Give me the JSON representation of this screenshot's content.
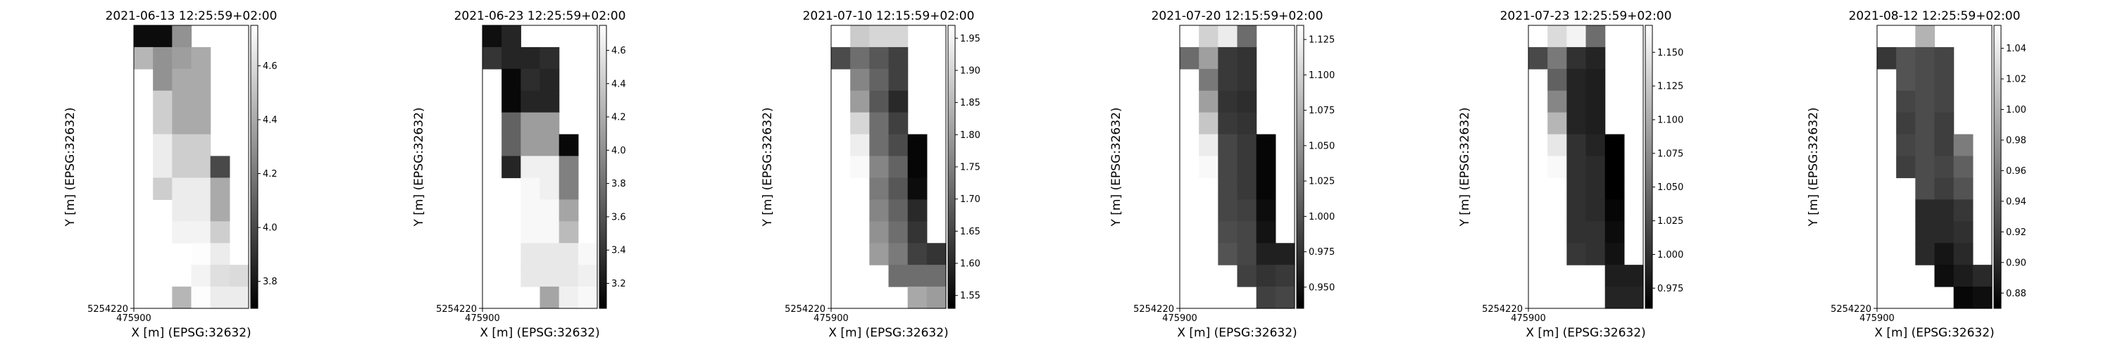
{
  "figure": {
    "xlabel": "X [m] (EPSG:32632)",
    "ylabel": "Y [m] (EPSG:32632)",
    "x_origin_tick": "475900",
    "y_origin_tick": "5254220"
  },
  "chart_data": [
    {
      "type": "heatmap",
      "title": "2021-06-13 12:25:59+02:00",
      "xlabel": "X [m] (EPSG:32632)",
      "ylabel": "Y [m] (EPSG:32632)",
      "colormap": "greys_reversed",
      "vrange": [
        3.7,
        4.75
      ],
      "colorbar_ticks": [
        "3.8",
        "4.0",
        "4.2",
        "4.4",
        "4.6"
      ],
      "ncols": 6,
      "nrows": 13,
      "grid": [
        [
          3.75,
          3.75,
          4.3,
          null,
          null,
          null
        ],
        [
          4.45,
          4.3,
          4.35,
          4.4,
          null,
          null
        ],
        [
          null,
          4.3,
          4.4,
          4.4,
          null,
          null
        ],
        [
          null,
          4.55,
          4.4,
          4.4,
          null,
          null
        ],
        [
          null,
          4.55,
          4.4,
          4.4,
          null,
          null
        ],
        [
          null,
          4.67,
          4.55,
          4.55,
          null,
          null
        ],
        [
          null,
          4.67,
          4.55,
          4.55,
          4.0,
          null
        ],
        [
          null,
          4.55,
          4.67,
          4.67,
          4.4,
          null
        ],
        [
          null,
          null,
          4.67,
          4.67,
          4.4,
          null
        ],
        [
          null,
          null,
          4.7,
          4.7,
          4.55,
          null
        ],
        [
          null,
          null,
          null,
          4.74,
          4.67,
          null
        ],
        [
          null,
          null,
          null,
          4.7,
          4.62,
          4.6
        ],
        [
          null,
          null,
          4.45,
          4.74,
          4.67,
          4.67
        ]
      ]
    },
    {
      "type": "heatmap",
      "title": "2021-06-23 12:25:59+02:00",
      "xlabel": "X [m] (EPSG:32632)",
      "ylabel": "Y [m] (EPSG:32632)",
      "colormap": "greys_reversed",
      "vrange": [
        3.05,
        4.75
      ],
      "colorbar_ticks": [
        "3.2",
        "3.4",
        "3.6",
        "3.8",
        "4.0",
        "4.2",
        "4.4",
        "4.6"
      ],
      "ncols": 6,
      "nrows": 13,
      "grid": [
        [
          3.15,
          3.3,
          null,
          null,
          null,
          null
        ],
        [
          3.4,
          3.3,
          3.3,
          3.35,
          null,
          null
        ],
        [
          null,
          3.1,
          3.35,
          3.3,
          null,
          null
        ],
        [
          null,
          3.1,
          3.3,
          3.3,
          null,
          null
        ],
        [
          null,
          3.7,
          4.1,
          4.1,
          null,
          null
        ],
        [
          null,
          3.7,
          4.1,
          4.1,
          3.1,
          null
        ],
        [
          null,
          3.3,
          4.65,
          4.65,
          3.9,
          null
        ],
        [
          null,
          null,
          4.7,
          4.65,
          3.9,
          null
        ],
        [
          null,
          null,
          4.7,
          4.7,
          4.15,
          null
        ],
        [
          null,
          null,
          4.7,
          4.7,
          4.3,
          null
        ],
        [
          null,
          null,
          4.6,
          4.6,
          4.6,
          4.7
        ],
        [
          null,
          null,
          4.6,
          4.6,
          4.6,
          4.65
        ],
        [
          null,
          null,
          null,
          4.15,
          4.65,
          4.7
        ]
      ]
    },
    {
      "type": "heatmap",
      "title": "2021-07-10 12:15:59+02:00",
      "xlabel": "X [m] (EPSG:32632)",
      "ylabel": "Y [m] (EPSG:32632)",
      "colormap": "greys_reversed",
      "vrange": [
        1.53,
        1.97
      ],
      "colorbar_ticks": [
        "1.55",
        "1.60",
        "1.65",
        "1.70",
        "1.75",
        "1.80",
        "1.85",
        "1.90",
        "1.95"
      ],
      "ncols": 6,
      "nrows": 13,
      "grid": [
        [
          null,
          1.88,
          1.9,
          1.9,
          null,
          null
        ],
        [
          1.66,
          1.72,
          1.68,
          1.64,
          null,
          null
        ],
        [
          null,
          1.76,
          1.7,
          1.64,
          null,
          null
        ],
        [
          null,
          1.8,
          1.68,
          1.6,
          null,
          null
        ],
        [
          null,
          1.9,
          1.72,
          1.64,
          null,
          null
        ],
        [
          null,
          1.94,
          1.72,
          1.66,
          1.54,
          null
        ],
        [
          null,
          1.96,
          1.76,
          1.7,
          1.54,
          null
        ],
        [
          null,
          null,
          1.74,
          1.68,
          1.55,
          null
        ],
        [
          null,
          null,
          1.76,
          1.7,
          1.6,
          null
        ],
        [
          null,
          null,
          1.78,
          1.72,
          1.62,
          null
        ],
        [
          null,
          null,
          1.8,
          1.74,
          1.64,
          1.62
        ],
        [
          null,
          null,
          null,
          1.72,
          1.72,
          1.72
        ],
        [
          null,
          null,
          null,
          null,
          1.82,
          1.8
        ]
      ]
    },
    {
      "type": "heatmap",
      "title": "2021-07-20 12:15:59+02:00",
      "xlabel": "X [m] (EPSG:32632)",
      "ylabel": "Y [m] (EPSG:32632)",
      "colormap": "greys_reversed",
      "vrange": [
        0.935,
        1.135
      ],
      "colorbar_ticks": [
        "0.950",
        "0.975",
        "1.000",
        "1.025",
        "1.050",
        "1.075",
        "1.100",
        "1.125"
      ],
      "ncols": 6,
      "nrows": 13,
      "grid": [
        [
          null,
          1.1,
          1.12,
          1.02,
          null,
          null
        ],
        [
          1.02,
          1.06,
          0.98,
          0.975,
          null,
          null
        ],
        [
          null,
          1.03,
          0.98,
          0.975,
          null,
          null
        ],
        [
          null,
          1.06,
          0.975,
          0.97,
          null,
          null
        ],
        [
          null,
          1.09,
          0.98,
          0.975,
          null,
          null
        ],
        [
          null,
          1.12,
          0.99,
          0.98,
          0.94,
          null
        ],
        [
          null,
          1.13,
          0.99,
          0.98,
          0.94,
          null
        ],
        [
          null,
          null,
          0.99,
          0.98,
          0.94,
          null
        ],
        [
          null,
          null,
          0.99,
          0.985,
          0.945,
          null
        ],
        [
          null,
          null,
          0.995,
          0.99,
          0.95,
          null
        ],
        [
          null,
          null,
          1.0,
          0.99,
          0.96,
          0.96
        ],
        [
          null,
          null,
          null,
          0.985,
          0.975,
          0.98
        ],
        [
          null,
          null,
          null,
          null,
          0.985,
          0.99
        ]
      ]
    },
    {
      "type": "heatmap",
      "title": "2021-07-23 12:25:59+02:00",
      "xlabel": "X [m] (EPSG:32632)",
      "ylabel": "Y [m] (EPSG:32632)",
      "colormap": "greys_reversed",
      "vrange": [
        0.96,
        1.17
      ],
      "colorbar_ticks": [
        "0.975",
        "1.000",
        "1.025",
        "1.050",
        "1.075",
        "1.100",
        "1.125",
        "1.150"
      ],
      "ncols": 6,
      "nrows": 13,
      "grid": [
        [
          null,
          1.14,
          1.16,
          1.05,
          null,
          null
        ],
        [
          1.02,
          1.06,
          1.0,
          0.99,
          null,
          null
        ],
        [
          null,
          1.04,
          0.99,
          0.985,
          null,
          null
        ],
        [
          null,
          1.07,
          0.99,
          0.985,
          null,
          null
        ],
        [
          null,
          1.11,
          0.99,
          0.985,
          null,
          null
        ],
        [
          null,
          1.15,
          1.0,
          0.99,
          0.96,
          null
        ],
        [
          null,
          1.165,
          1.0,
          0.995,
          0.96,
          null
        ],
        [
          null,
          null,
          1.0,
          0.995,
          0.96,
          null
        ],
        [
          null,
          null,
          1.0,
          0.995,
          0.965,
          null
        ],
        [
          null,
          null,
          1.0,
          1.0,
          0.97,
          null
        ],
        [
          null,
          null,
          1.005,
          1.0,
          0.975,
          null
        ],
        [
          null,
          null,
          null,
          null,
          0.985,
          0.985
        ],
        [
          null,
          null,
          null,
          null,
          0.99,
          0.99
        ]
      ]
    },
    {
      "type": "heatmap",
      "title": "2021-08-12 12:25:59+02:00",
      "xlabel": "X [m] (EPSG:32632)",
      "ylabel": "Y [m] (EPSG:32632)",
      "colormap": "greys_reversed",
      "vrange": [
        0.87,
        1.055
      ],
      "colorbar_ticks": [
        "0.88",
        "0.90",
        "0.92",
        "0.94",
        "0.96",
        "0.98",
        "1.00",
        "1.02",
        "1.04"
      ],
      "ncols": 6,
      "nrows": 13,
      "grid": [
        [
          null,
          null,
          1.0,
          null,
          null,
          null
        ],
        [
          0.91,
          0.93,
          0.925,
          0.92,
          null,
          null
        ],
        [
          null,
          0.93,
          0.925,
          0.92,
          null,
          null
        ],
        [
          null,
          0.92,
          0.925,
          0.92,
          null,
          null
        ],
        [
          null,
          0.915,
          0.925,
          0.915,
          null,
          null
        ],
        [
          null,
          0.92,
          0.925,
          0.915,
          0.96,
          null
        ],
        [
          null,
          0.915,
          0.925,
          0.92,
          0.94,
          null
        ],
        [
          null,
          null,
          0.925,
          0.915,
          0.93,
          null
        ],
        [
          null,
          null,
          0.9,
          0.9,
          0.91,
          null
        ],
        [
          null,
          null,
          0.9,
          0.9,
          0.905,
          null
        ],
        [
          null,
          null,
          0.9,
          0.885,
          0.9,
          null
        ],
        [
          null,
          null,
          null,
          0.88,
          0.89,
          0.9
        ],
        [
          null,
          null,
          null,
          null,
          0.875,
          0.88
        ]
      ]
    }
  ]
}
